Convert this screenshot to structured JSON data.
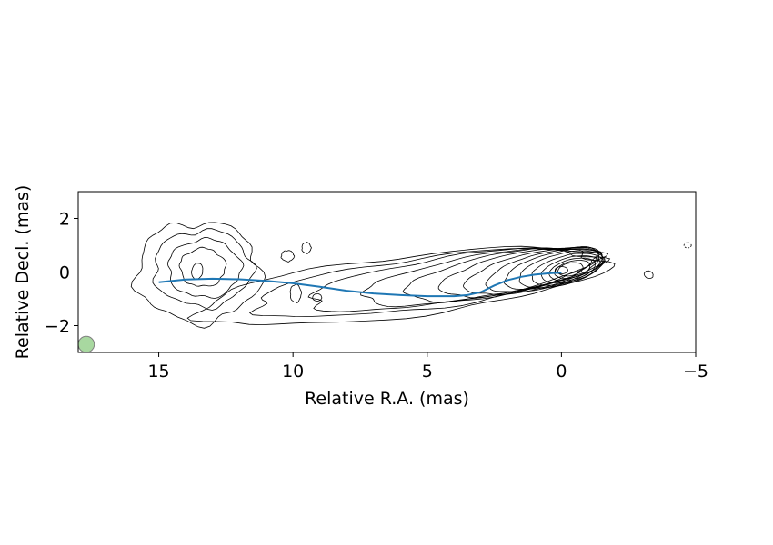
{
  "chart_data": {
    "type": "contour",
    "title": "",
    "xlabel": "Relative R.A. (mas)",
    "ylabel": "Relative Decl. (mas)",
    "xlim": [
      18,
      -5
    ],
    "ylim": [
      -3,
      3
    ],
    "x_inverted": true,
    "xticks": [
      15,
      10,
      5,
      0,
      -5
    ],
    "xtick_labels": [
      "15",
      "10",
      "5",
      "0",
      "−5"
    ],
    "yticks": [
      2,
      0,
      -2
    ],
    "ytick_labels": [
      "2",
      "0",
      "−2"
    ],
    "grid": false,
    "legend": "none",
    "colors": {
      "contour": "#000000",
      "jet_path": "#1f77b4",
      "beam_fill": "#a8d8a0",
      "beam_edge": "#808080"
    },
    "jet_path": {
      "name": "",
      "x": [
        15,
        14,
        13,
        12,
        11,
        10,
        9,
        8,
        7,
        6,
        5,
        4,
        3.5,
        3,
        2.5,
        2,
        1.5,
        1,
        0.5,
        0
      ],
      "y": [
        -0.38,
        -0.28,
        -0.25,
        -0.27,
        -0.33,
        -0.42,
        -0.55,
        -0.7,
        -0.8,
        -0.86,
        -0.9,
        -0.9,
        -0.86,
        -0.75,
        -0.5,
        -0.3,
        -0.18,
        -0.1,
        -0.05,
        -0.02
      ]
    },
    "beam": {
      "x": 17.7,
      "y": -2.7,
      "radius_mas": 0.3
    },
    "core": {
      "x": 0,
      "y": 0
    }
  }
}
